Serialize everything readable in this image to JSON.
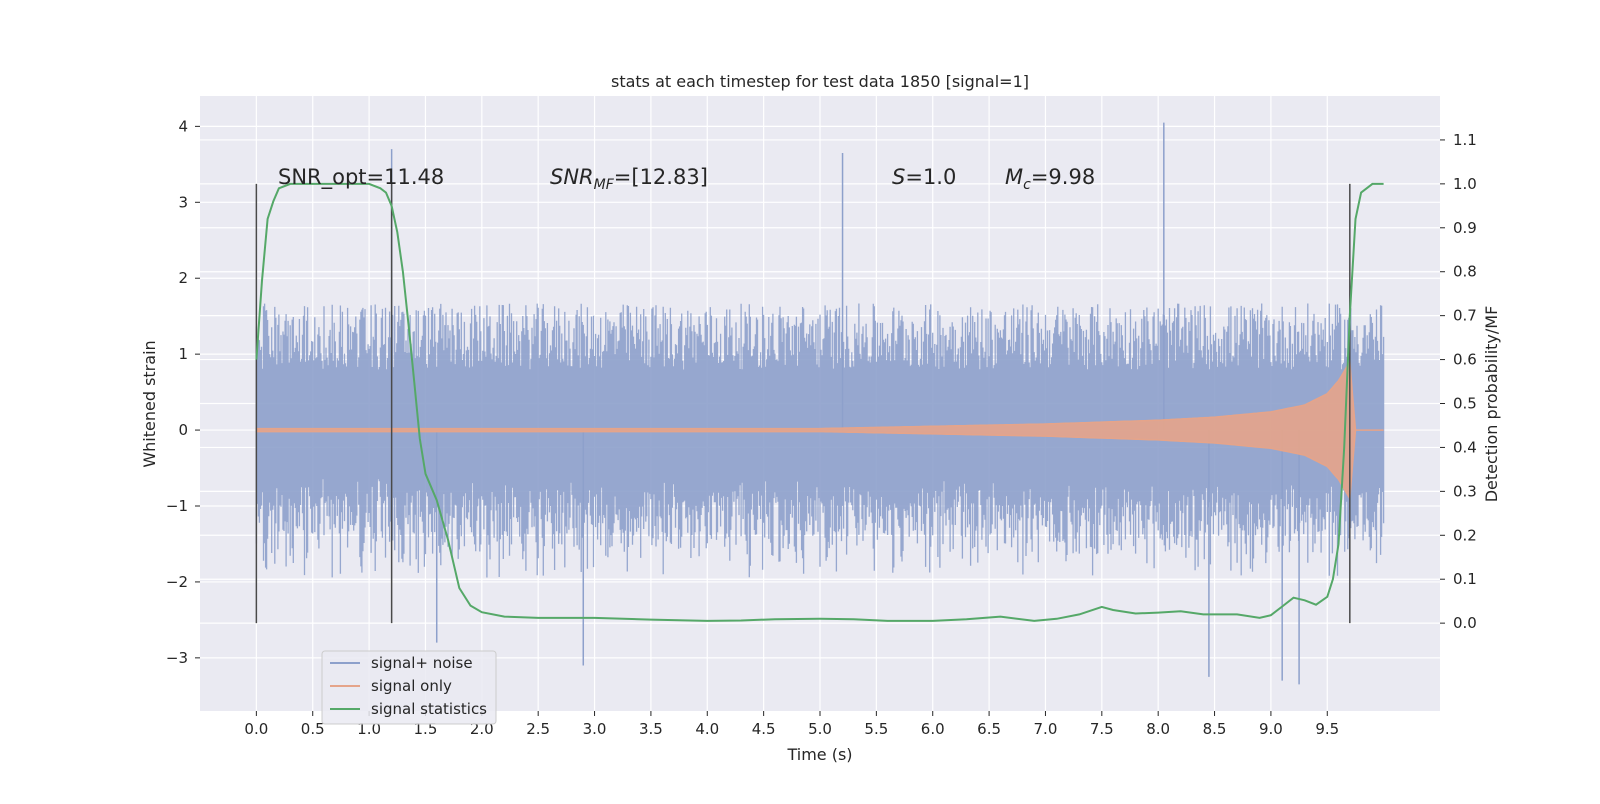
{
  "chart_data": {
    "type": "line",
    "title": "stats at each timestep for test data 1850 [signal=1]",
    "xlabel": "Time (s)",
    "ylabel": "Whitened strain",
    "ylabel_right": "Detection probability/MF",
    "xlim": [
      -0.5,
      10.5
    ],
    "ylim": [
      -3.7,
      4.4
    ],
    "ylim_right": [
      -0.2,
      1.2
    ],
    "xticks": [
      0.0,
      0.5,
      1.0,
      1.5,
      2.0,
      2.5,
      3.0,
      3.5,
      4.0,
      4.5,
      5.0,
      5.5,
      6.0,
      6.5,
      7.0,
      7.5,
      8.0,
      8.5,
      9.0,
      9.5
    ],
    "yticks": [
      -3,
      -2,
      -1,
      0,
      1,
      2,
      3,
      4
    ],
    "yticks_right": [
      0.0,
      0.1,
      0.2,
      0.3,
      0.4,
      0.5,
      0.6,
      0.7,
      0.8,
      0.9,
      1.0,
      1.1
    ],
    "grid": true,
    "legend_position": "lower-left",
    "annotations": {
      "snr_opt": "SNR_opt=11.48",
      "snr_mf_base": "SNR",
      "snr_mf_sub": "MF",
      "snr_mf_value": "=[12.83]",
      "s_symbol": "S",
      "s_value": "=1.0",
      "mc_symbol": "M",
      "mc_sub": "c",
      "mc_value": "=9.98"
    },
    "vertical_markers_x": [
      0.0,
      1.2,
      9.7
    ],
    "series": [
      {
        "name": "signal+ noise",
        "color": "#8da0cb",
        "noise_stats": {
          "x_range": [
            0.0,
            10.0
          ],
          "typical_abs_amplitude": 1.45,
          "spikes": [
            [
              1.2,
              3.7
            ],
            [
              5.2,
              3.65
            ],
            [
              8.05,
              4.05
            ],
            [
              2.9,
              -3.1
            ],
            [
              9.1,
              -3.3
            ],
            [
              9.25,
              -3.35
            ],
            [
              8.45,
              -3.25
            ],
            [
              1.6,
              -2.8
            ]
          ]
        }
      },
      {
        "name": "signal only",
        "color": "#e5a48a",
        "envelope": {
          "x": [
            0.0,
            5.0,
            6.0,
            7.0,
            8.0,
            8.5,
            9.0,
            9.3,
            9.5,
            9.6,
            9.7,
            9.75,
            10.0
          ],
          "amplitude": [
            0.02,
            0.02,
            0.05,
            0.08,
            0.13,
            0.17,
            0.24,
            0.33,
            0.48,
            0.65,
            0.9,
            0.0,
            0.0
          ]
        }
      },
      {
        "name": "signal statistics",
        "color": "#55a868",
        "axis": "right",
        "x": [
          0.0,
          0.05,
          0.1,
          0.15,
          0.2,
          0.3,
          0.5,
          0.7,
          0.9,
          1.0,
          1.1,
          1.15,
          1.2,
          1.25,
          1.3,
          1.35,
          1.4,
          1.45,
          1.5,
          1.6,
          1.7,
          1.8,
          1.9,
          2.0,
          2.2,
          2.5,
          3.0,
          3.5,
          4.0,
          4.3,
          4.6,
          5.0,
          5.3,
          5.6,
          6.0,
          6.3,
          6.6,
          6.9,
          7.1,
          7.3,
          7.5,
          7.6,
          7.8,
          8.0,
          8.2,
          8.4,
          8.7,
          8.9,
          9.0,
          9.1,
          9.2,
          9.3,
          9.4,
          9.5,
          9.55,
          9.6,
          9.65,
          9.7,
          9.75,
          9.8,
          9.9,
          10.0
        ],
        "y": [
          0.6,
          0.78,
          0.92,
          0.96,
          0.99,
          1.0,
          1.0,
          1.0,
          1.0,
          1.0,
          0.99,
          0.98,
          0.95,
          0.89,
          0.8,
          0.68,
          0.55,
          0.42,
          0.34,
          0.28,
          0.19,
          0.08,
          0.04,
          0.025,
          0.015,
          0.012,
          0.012,
          0.008,
          0.005,
          0.006,
          0.009,
          0.01,
          0.009,
          0.005,
          0.005,
          0.009,
          0.015,
          0.005,
          0.01,
          0.02,
          0.037,
          0.03,
          0.022,
          0.024,
          0.027,
          0.02,
          0.02,
          0.012,
          0.018,
          0.038,
          0.058,
          0.052,
          0.042,
          0.06,
          0.1,
          0.18,
          0.4,
          0.7,
          0.92,
          0.98,
          1.0,
          1.0
        ]
      }
    ]
  }
}
